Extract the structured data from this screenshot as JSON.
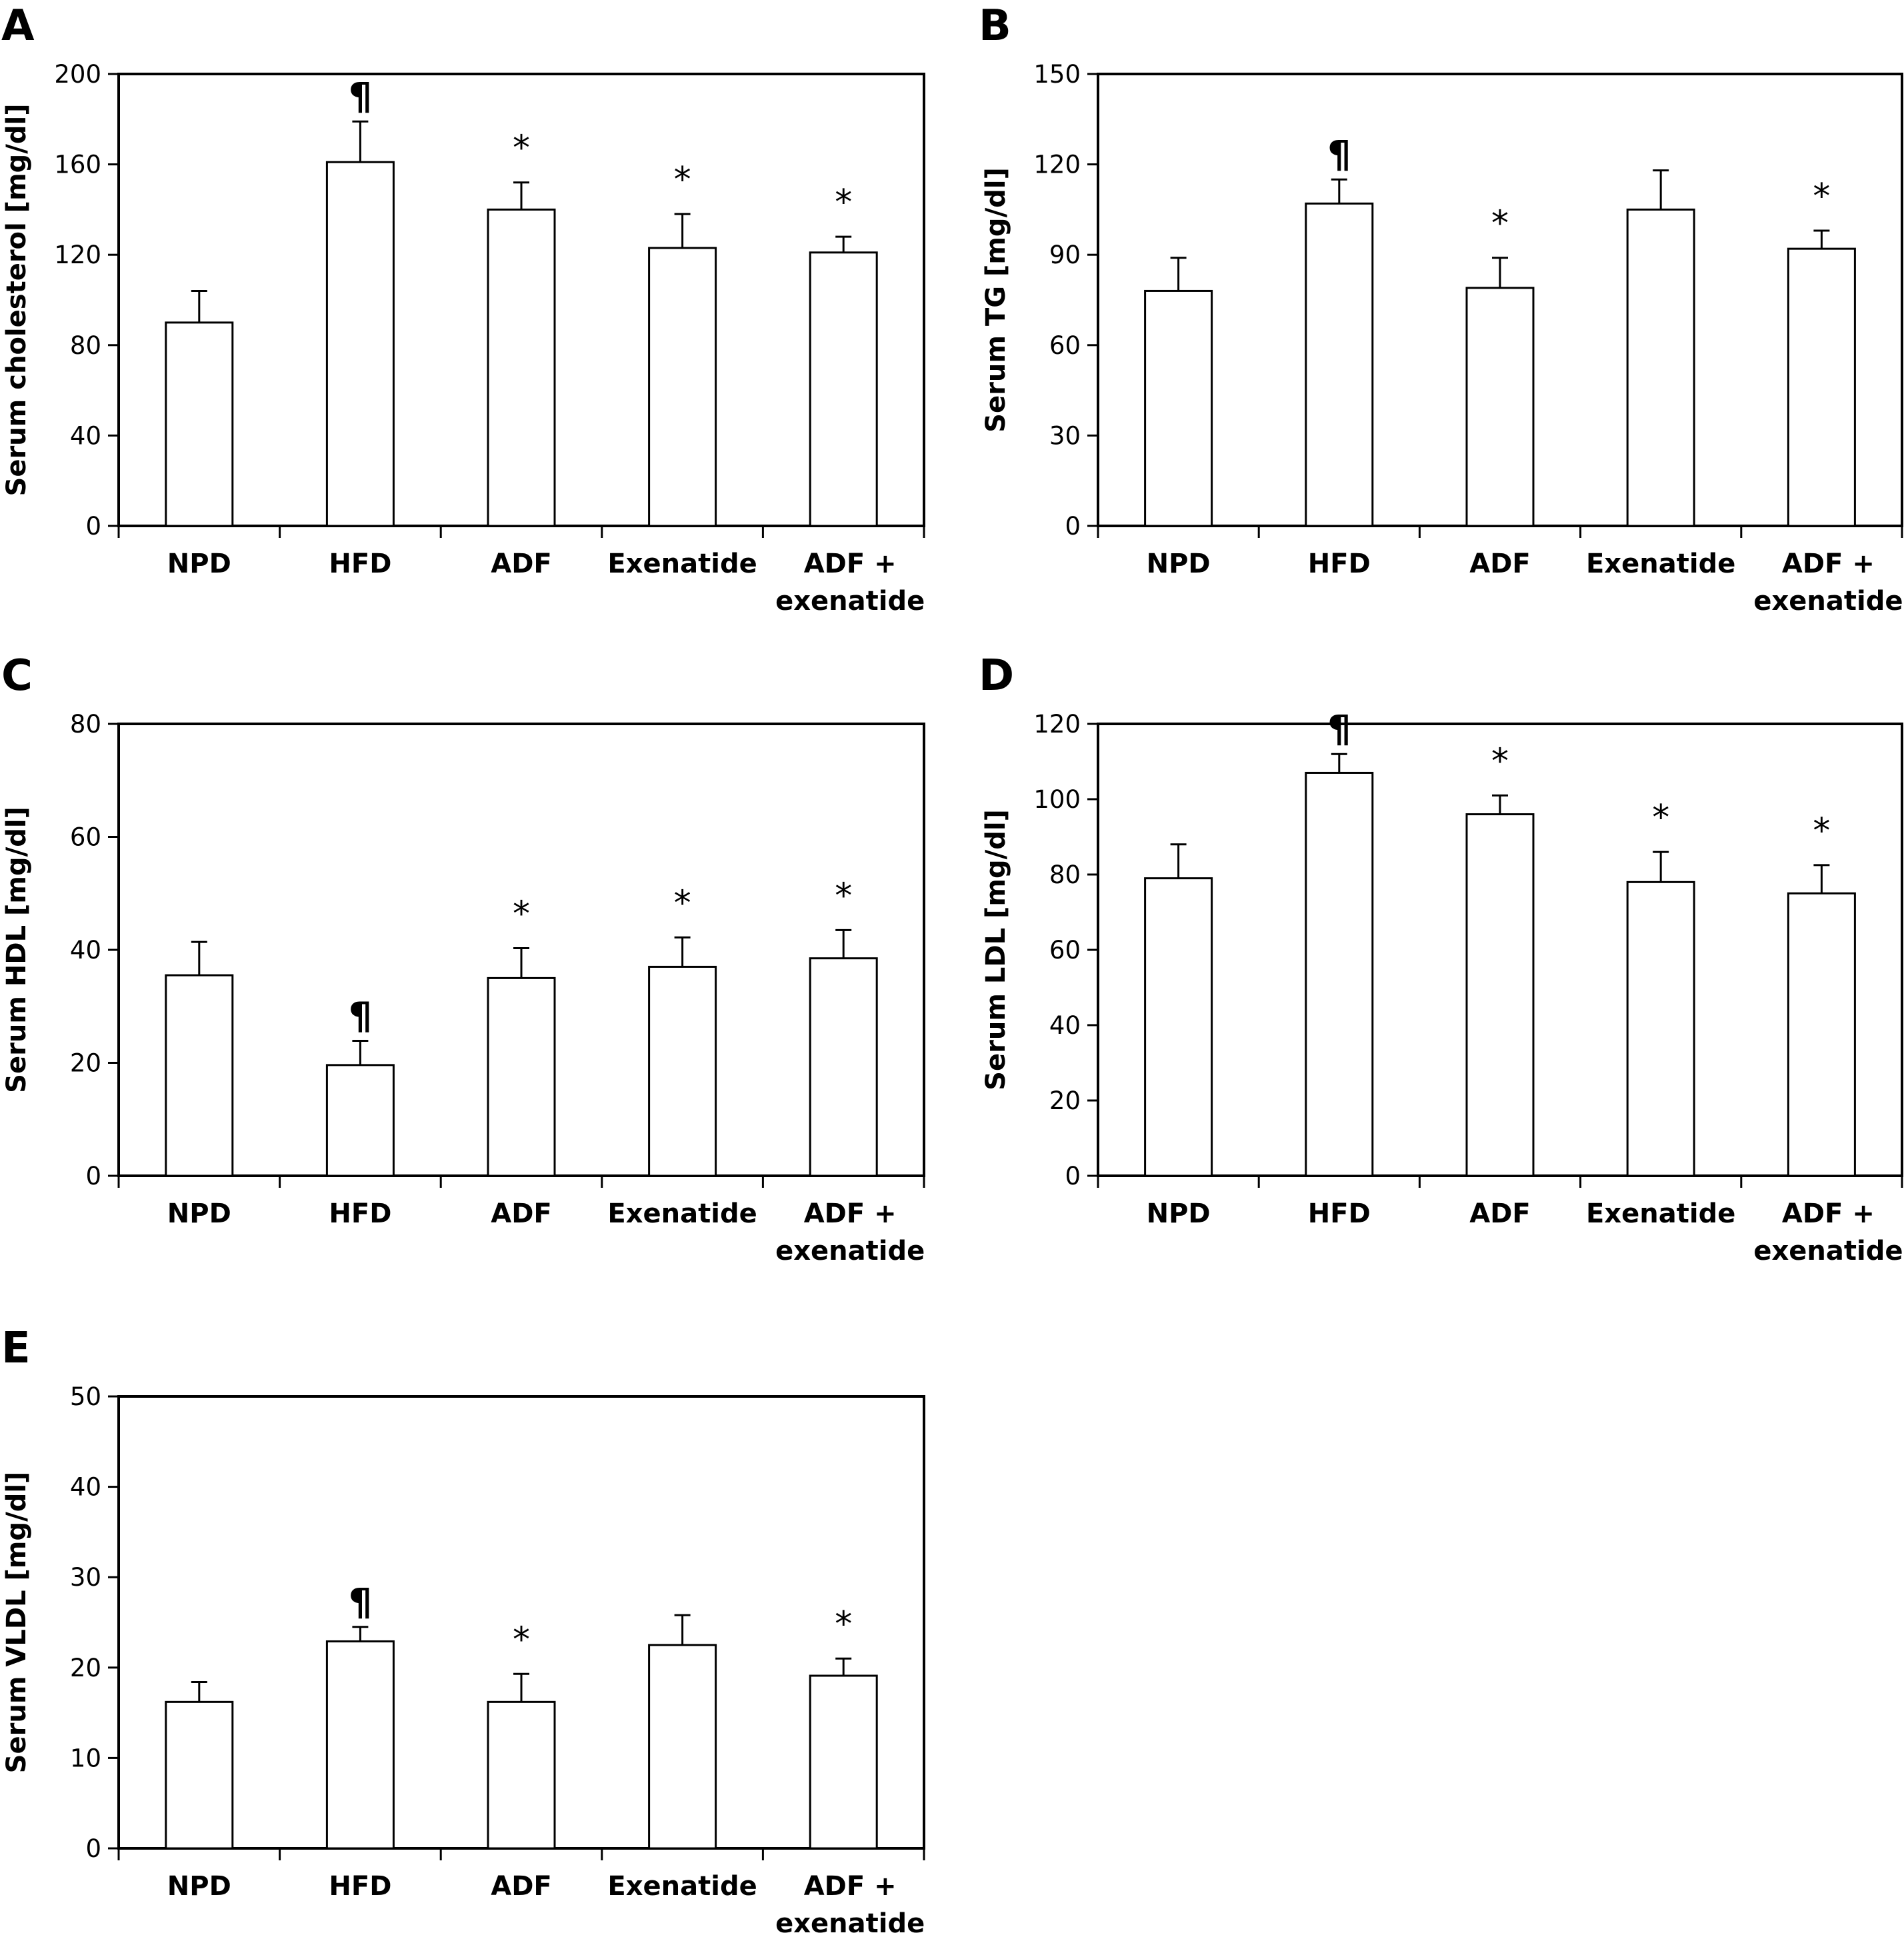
{
  "figure": {
    "categories": [
      "NPD",
      "HFD",
      "ADF",
      "Exenatide",
      "ADF + exenatide"
    ],
    "category_lines": [
      [
        "NPD"
      ],
      [
        "HFD"
      ],
      [
        "ADF"
      ],
      [
        "Exenatide"
      ],
      [
        "ADF +",
        "exenatide"
      ]
    ],
    "legend_symbols": {
      "paragraph": "¶",
      "asterisk": "*"
    }
  },
  "chart_data": [
    {
      "panel": "A",
      "type": "bar",
      "title": "",
      "xlabel": "",
      "ylabel": "Serum cholesterol [mg/dl]",
      "ylim": [
        0,
        200
      ],
      "yticks": [
        0,
        40,
        80,
        120,
        160,
        200
      ],
      "categories": [
        "NPD",
        "HFD",
        "ADF",
        "Exenatide",
        "ADF + exenatide"
      ],
      "values": [
        90,
        161,
        140,
        123,
        121
      ],
      "error_upper": [
        104,
        179,
        152,
        138,
        128
      ],
      "annotations": [
        "",
        "¶",
        "*",
        "*",
        "*"
      ],
      "grid": false
    },
    {
      "panel": "B",
      "type": "bar",
      "title": "",
      "xlabel": "",
      "ylabel": "Serum TG [mg/dl]",
      "ylim": [
        0,
        150
      ],
      "yticks": [
        0,
        30,
        60,
        90,
        120,
        150
      ],
      "categories": [
        "NPD",
        "HFD",
        "ADF",
        "Exenatide",
        "ADF + exenatide"
      ],
      "values": [
        78,
        107,
        79,
        105,
        92
      ],
      "error_upper": [
        89,
        115,
        89,
        118,
        98
      ],
      "annotations": [
        "",
        "¶",
        "*",
        "",
        "*"
      ],
      "grid": false
    },
    {
      "panel": "C",
      "type": "bar",
      "title": "",
      "xlabel": "",
      "ylabel": "Serum HDL [mg/dl]",
      "ylim": [
        0,
        80
      ],
      "yticks": [
        0,
        20,
        40,
        60,
        80
      ],
      "categories": [
        "NPD",
        "HFD",
        "ADF",
        "Exenatide",
        "ADF + exenatide"
      ],
      "values": [
        35.5,
        19.6,
        35.0,
        37.0,
        38.5
      ],
      "error_upper": [
        41.4,
        23.9,
        40.3,
        42.2,
        43.5
      ],
      "annotations": [
        "",
        "¶",
        "*",
        "*",
        "*"
      ],
      "grid": false
    },
    {
      "panel": "D",
      "type": "bar",
      "title": "",
      "xlabel": "",
      "ylabel": "Serum LDL [mg/dl]",
      "ylim": [
        0,
        120
      ],
      "yticks": [
        0,
        20,
        40,
        60,
        80,
        100,
        120
      ],
      "categories": [
        "NPD",
        "HFD",
        "ADF",
        "Exenatide",
        "ADF + exenatide"
      ],
      "values": [
        79,
        107,
        96,
        78,
        75
      ],
      "error_upper": [
        88,
        112,
        101,
        86,
        82.5
      ],
      "annotations": [
        "",
        "¶",
        "*",
        "*",
        "*"
      ],
      "grid": false
    },
    {
      "panel": "E",
      "type": "bar",
      "title": "",
      "xlabel": "",
      "ylabel": "Serum VLDL [mg/dl]",
      "ylim": [
        0,
        50
      ],
      "yticks": [
        0,
        10,
        20,
        30,
        40,
        50
      ],
      "categories": [
        "NPD",
        "HFD",
        "ADF",
        "Exenatide",
        "ADF + exenatide"
      ],
      "values": [
        16.2,
        22.9,
        16.2,
        22.5,
        19.1
      ],
      "error_upper": [
        18.4,
        24.5,
        19.3,
        25.8,
        21.0
      ],
      "annotations": [
        "",
        "¶",
        "*",
        "",
        "*"
      ],
      "grid": false
    }
  ]
}
